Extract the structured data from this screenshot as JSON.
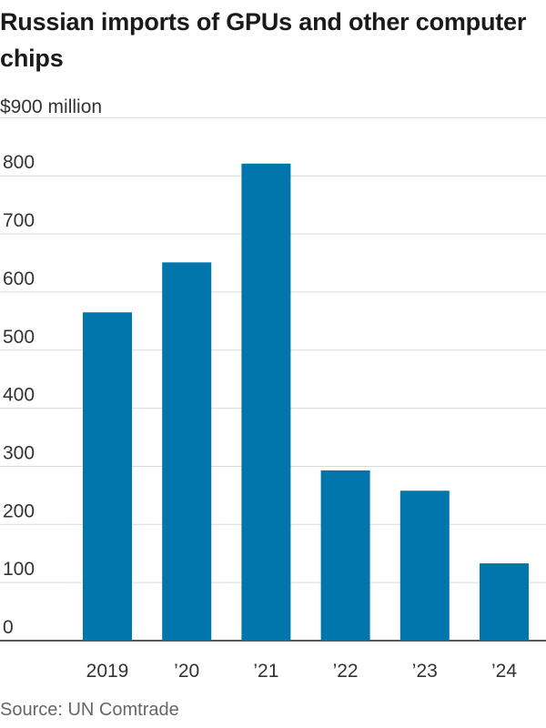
{
  "colors": {
    "bar": "#0076AD",
    "grid": "#d9d9d9",
    "baseline": "#222222",
    "text": "#333333"
  },
  "chart_data": {
    "type": "bar",
    "title": "Russian imports of GPUs and other computer chips",
    "unit_label": "$900 million",
    "xlabel": "",
    "ylabel": "",
    "categories": [
      "2019",
      "’20",
      "’21",
      "’22",
      "’23",
      "’24"
    ],
    "values": [
      565,
      651,
      821,
      293,
      258,
      133
    ],
    "ylim": [
      0,
      900
    ],
    "yticks": [
      0,
      100,
      200,
      300,
      400,
      500,
      600,
      700,
      800
    ],
    "yticks_text": [
      "0",
      "100",
      "200",
      "300",
      "400",
      "500",
      "600",
      "700",
      "800"
    ],
    "grid": true,
    "source": "Source: UN Comtrade"
  }
}
